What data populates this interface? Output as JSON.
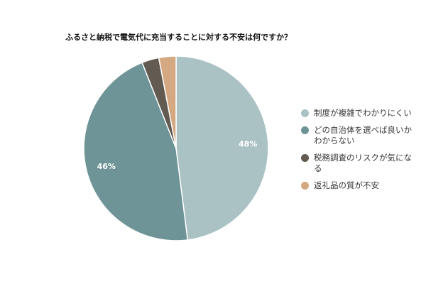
{
  "chart_data": {
    "type": "pie",
    "title": "ふるさと納税で電気代に充当することに対する不安は何ですか？",
    "slices": [
      {
        "label": "制度が複雑でわかりにくい",
        "value": 48,
        "display": "48%",
        "color": "#abc2c4"
      },
      {
        "label": "どの自治体を選べば良いかわからない",
        "value": 46,
        "display": "46%",
        "color": "#6e9497"
      },
      {
        "label": "税務調査のリスクが気になる",
        "value": 3,
        "display": "",
        "color": "#635a52"
      },
      {
        "label": "返礼品の質が不安",
        "value": 3,
        "display": "",
        "color": "#d4a982"
      }
    ],
    "legend_position": "right"
  },
  "legend": {
    "items": [
      {
        "line1": "制度が複雑でわかりにくい",
        "line2": ""
      },
      {
        "line1": "どの自治体を選べば良いか",
        "line2": "わからない"
      },
      {
        "line1": "税務調査のリスクが気にな",
        "line2": "る"
      },
      {
        "line1": "返礼品の質が不安",
        "line2": ""
      }
    ]
  }
}
